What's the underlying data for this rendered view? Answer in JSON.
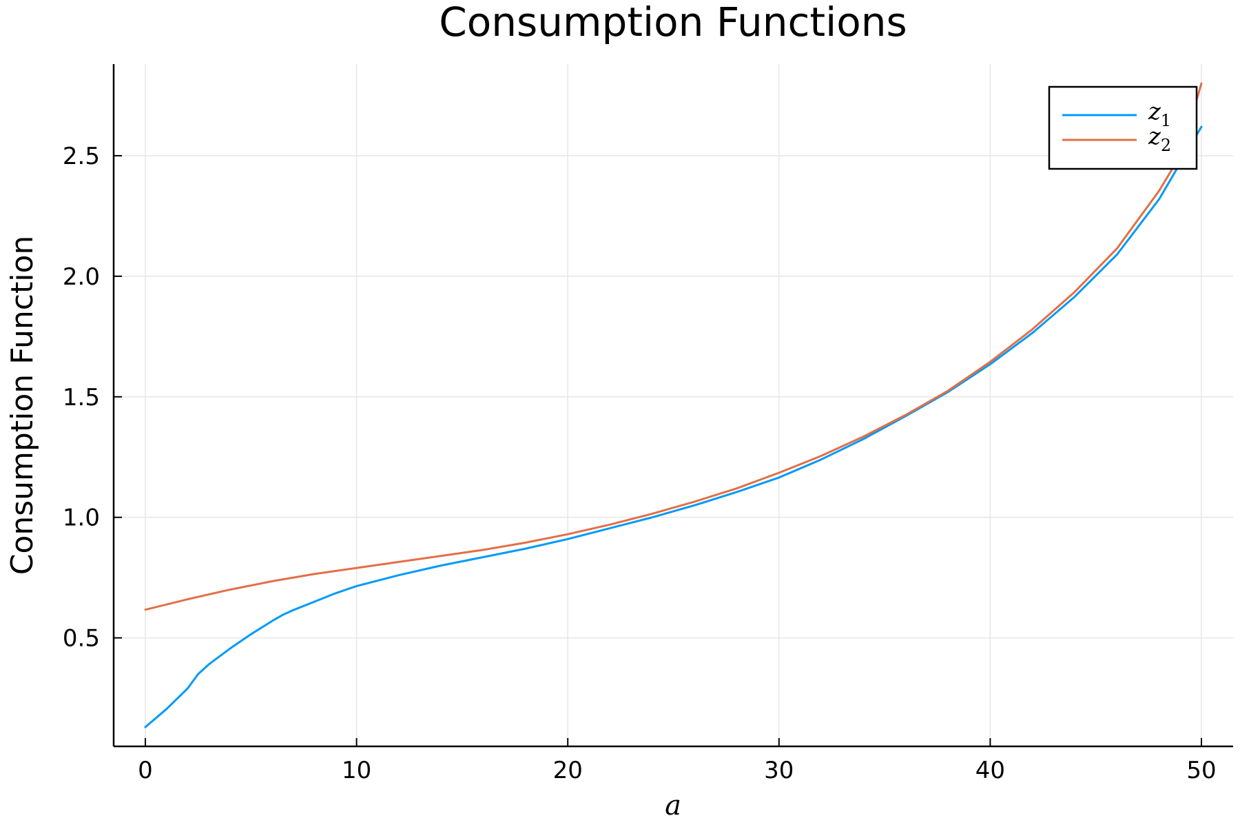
{
  "chart_data": {
    "type": "line",
    "title": "Consumption Functions",
    "xlabel": "a",
    "ylabel": "Consumption Function",
    "xlim": [
      -1.5,
      51.5
    ],
    "ylim": [
      0.05,
      2.88
    ],
    "xticks": [
      0,
      10,
      20,
      30,
      40,
      50
    ],
    "xtick_labels": [
      "0",
      "10",
      "20",
      "30",
      "40",
      "50"
    ],
    "yticks": [
      0.5,
      1.0,
      1.5,
      2.0,
      2.5
    ],
    "ytick_labels": [
      "0.5",
      "1.0",
      "1.5",
      "2.0",
      "2.5"
    ],
    "grid": true,
    "legend_position": "top-right",
    "series": [
      {
        "name": "z",
        "subscript": "1",
        "color": "#009af9",
        "x": [
          0,
          1,
          2,
          2.5,
          3,
          4,
          5,
          6,
          6.5,
          7,
          8,
          9,
          10,
          12,
          14,
          16,
          18,
          20,
          22,
          24,
          26,
          28,
          30,
          32,
          34,
          36,
          38,
          40,
          42,
          44,
          46,
          48,
          50
        ],
        "y": [
          0.13,
          0.205,
          0.29,
          0.35,
          0.39,
          0.455,
          0.515,
          0.57,
          0.595,
          0.615,
          0.65,
          0.685,
          0.715,
          0.76,
          0.8,
          0.835,
          0.87,
          0.91,
          0.955,
          1.0,
          1.05,
          1.105,
          1.165,
          1.24,
          1.325,
          1.42,
          1.52,
          1.635,
          1.765,
          1.915,
          2.09,
          2.32,
          2.62
        ]
      },
      {
        "name": "z",
        "subscript": "2",
        "color": "#e26f46",
        "x": [
          0,
          2,
          4,
          6,
          8,
          10,
          12,
          14,
          16,
          18,
          20,
          22,
          24,
          26,
          28,
          30,
          32,
          34,
          36,
          38,
          40,
          42,
          44,
          46,
          48,
          49,
          50
        ],
        "y": [
          0.617,
          0.66,
          0.7,
          0.735,
          0.765,
          0.79,
          0.815,
          0.84,
          0.865,
          0.895,
          0.93,
          0.97,
          1.015,
          1.065,
          1.12,
          1.185,
          1.255,
          1.335,
          1.425,
          1.525,
          1.645,
          1.78,
          1.935,
          2.115,
          2.355,
          2.5,
          2.8
        ]
      }
    ]
  }
}
